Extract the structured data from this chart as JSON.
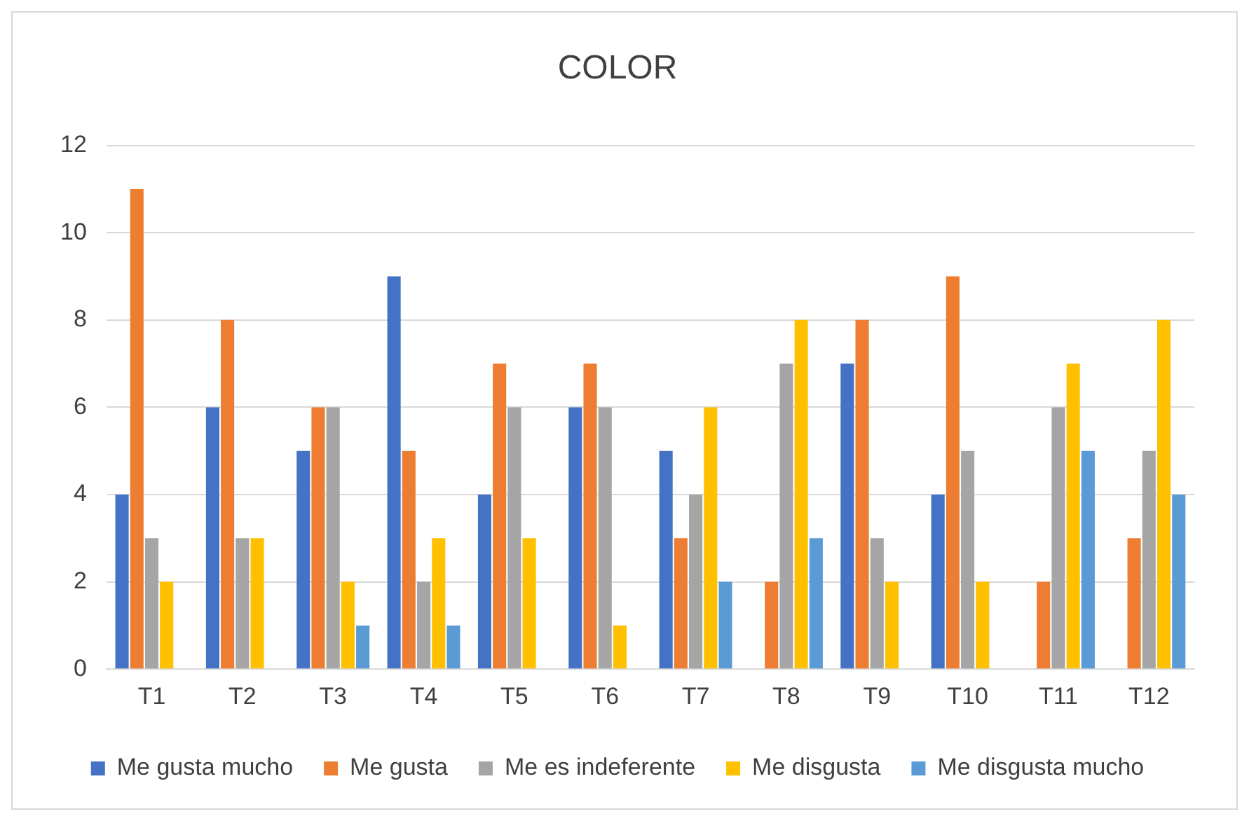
{
  "chart_data": {
    "type": "bar",
    "title": "COLOR",
    "categories": [
      "T1",
      "T2",
      "T3",
      "T4",
      "T5",
      "T6",
      "T7",
      "T8",
      "T9",
      "T10",
      "T11",
      "T12"
    ],
    "series": [
      {
        "name": "Me gusta mucho",
        "color": "#4472c4",
        "values": [
          4,
          6,
          5,
          9,
          4,
          6,
          5,
          0,
          7,
          4,
          0,
          0
        ]
      },
      {
        "name": "Me gusta",
        "color": "#ed7d31",
        "values": [
          11,
          8,
          6,
          5,
          7,
          7,
          3,
          2,
          8,
          9,
          2,
          3
        ]
      },
      {
        "name": "Me es indeferente",
        "color": "#a5a5a5",
        "values": [
          3,
          3,
          6,
          2,
          6,
          6,
          4,
          7,
          3,
          5,
          6,
          5
        ]
      },
      {
        "name": "Me disgusta",
        "color": "#ffc000",
        "values": [
          2,
          3,
          2,
          3,
          3,
          1,
          6,
          8,
          2,
          2,
          7,
          8
        ]
      },
      {
        "name": "Me disgusta mucho",
        "color": "#5b9bd5",
        "values": [
          0,
          0,
          1,
          1,
          0,
          0,
          2,
          3,
          0,
          0,
          5,
          4
        ]
      }
    ],
    "ylim": [
      0,
      12
    ],
    "yticks": [
      0,
      2,
      4,
      6,
      8,
      10,
      12
    ],
    "grid": "y",
    "legend": "bottom"
  }
}
